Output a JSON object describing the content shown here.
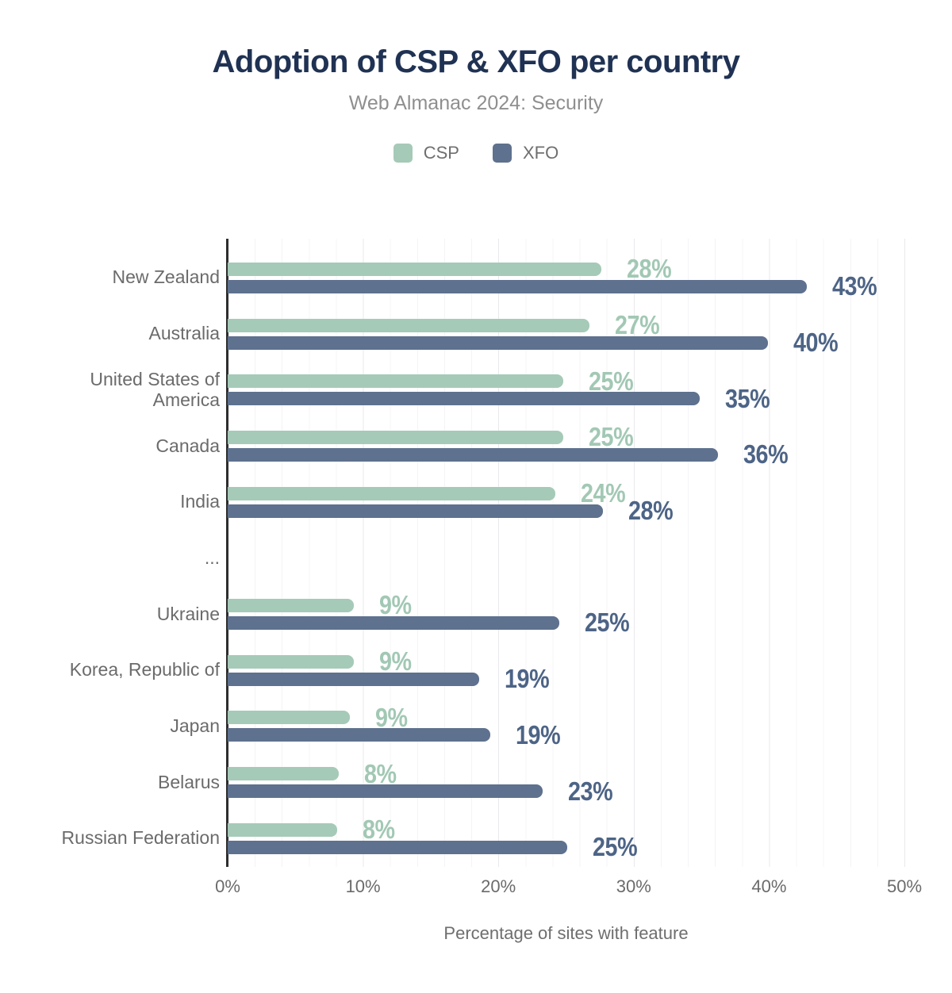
{
  "title": "Adoption of CSP & XFO per country",
  "subtitle": "Web Almanac 2024: Security",
  "legend": [
    {
      "label": "CSP",
      "color": "#a6cab8"
    },
    {
      "label": "XFO",
      "color": "#5e718e"
    }
  ],
  "colors": {
    "csp_bar": "#a6cab8",
    "xfo_bar": "#5e718e",
    "csp_value_label": "#a2c8b4",
    "xfo_value_label": "#4d6486",
    "title_text": "#203253",
    "subtitle_text": "#8f8f8f",
    "axis_text": "#6b6b6b",
    "axis_line": "#2e2e2e"
  },
  "chart_data": {
    "type": "bar",
    "orientation": "horizontal",
    "title": "Adoption of CSP & XFO per country",
    "subtitle": "Web Almanac 2024: Security",
    "xlabel": "Percentage of sites with feature",
    "xlim": [
      0,
      50
    ],
    "grid": "vertical, minor every 2%, major every 10%",
    "legend_position": "top-center",
    "x_ticks": [
      {
        "value": 0,
        "label": "0%"
      },
      {
        "value": 10,
        "label": "10%"
      },
      {
        "value": 20,
        "label": "20%"
      },
      {
        "value": 30,
        "label": "30%"
      },
      {
        "value": 40,
        "label": "40%"
      },
      {
        "value": 50,
        "label": "50%"
      }
    ],
    "series_names": [
      "CSP",
      "XFO"
    ],
    "rows": [
      {
        "country": "New Zealand",
        "csp": 28,
        "csp_label": "28%",
        "csp_length": 27.6,
        "xfo": 43,
        "xfo_label": "43%",
        "xfo_length": 42.8
      },
      {
        "country": "Australia",
        "csp": 27,
        "csp_label": "27%",
        "csp_length": 26.7,
        "xfo": 40,
        "xfo_label": "40%",
        "xfo_length": 39.9
      },
      {
        "country": "United States of America",
        "csp": 25,
        "csp_label": "25%",
        "csp_length": 24.8,
        "xfo": 35,
        "xfo_label": "35%",
        "xfo_length": 34.9
      },
      {
        "country": "Canada",
        "csp": 25,
        "csp_label": "25%",
        "csp_length": 24.8,
        "xfo": 36,
        "xfo_label": "36%",
        "xfo_length": 36.2
      },
      {
        "country": "India",
        "csp": 24,
        "csp_label": "24%",
        "csp_length": 24.2,
        "xfo": 28,
        "xfo_label": "28%",
        "xfo_length": 27.7
      },
      {
        "country": "...",
        "gap": true
      },
      {
        "country": "Ukraine",
        "csp": 9,
        "csp_label": "9%",
        "csp_length": 9.3,
        "xfo": 25,
        "xfo_label": "25%",
        "xfo_length": 24.5
      },
      {
        "country": "Korea, Republic of",
        "csp": 9,
        "csp_label": "9%",
        "csp_length": 9.3,
        "xfo": 19,
        "xfo_label": "19%",
        "xfo_length": 18.6
      },
      {
        "country": "Japan",
        "csp": 9,
        "csp_label": "9%",
        "csp_length": 9.0,
        "xfo": 19,
        "xfo_label": "19%",
        "xfo_length": 19.4
      },
      {
        "country": "Belarus",
        "csp": 8,
        "csp_label": "8%",
        "csp_length": 8.2,
        "xfo": 23,
        "xfo_label": "23%",
        "xfo_length": 23.3
      },
      {
        "country": "Russian Federation",
        "csp": 8,
        "csp_label": "8%",
        "csp_length": 8.1,
        "xfo": 25,
        "xfo_label": "25%",
        "xfo_length": 25.1
      }
    ]
  }
}
